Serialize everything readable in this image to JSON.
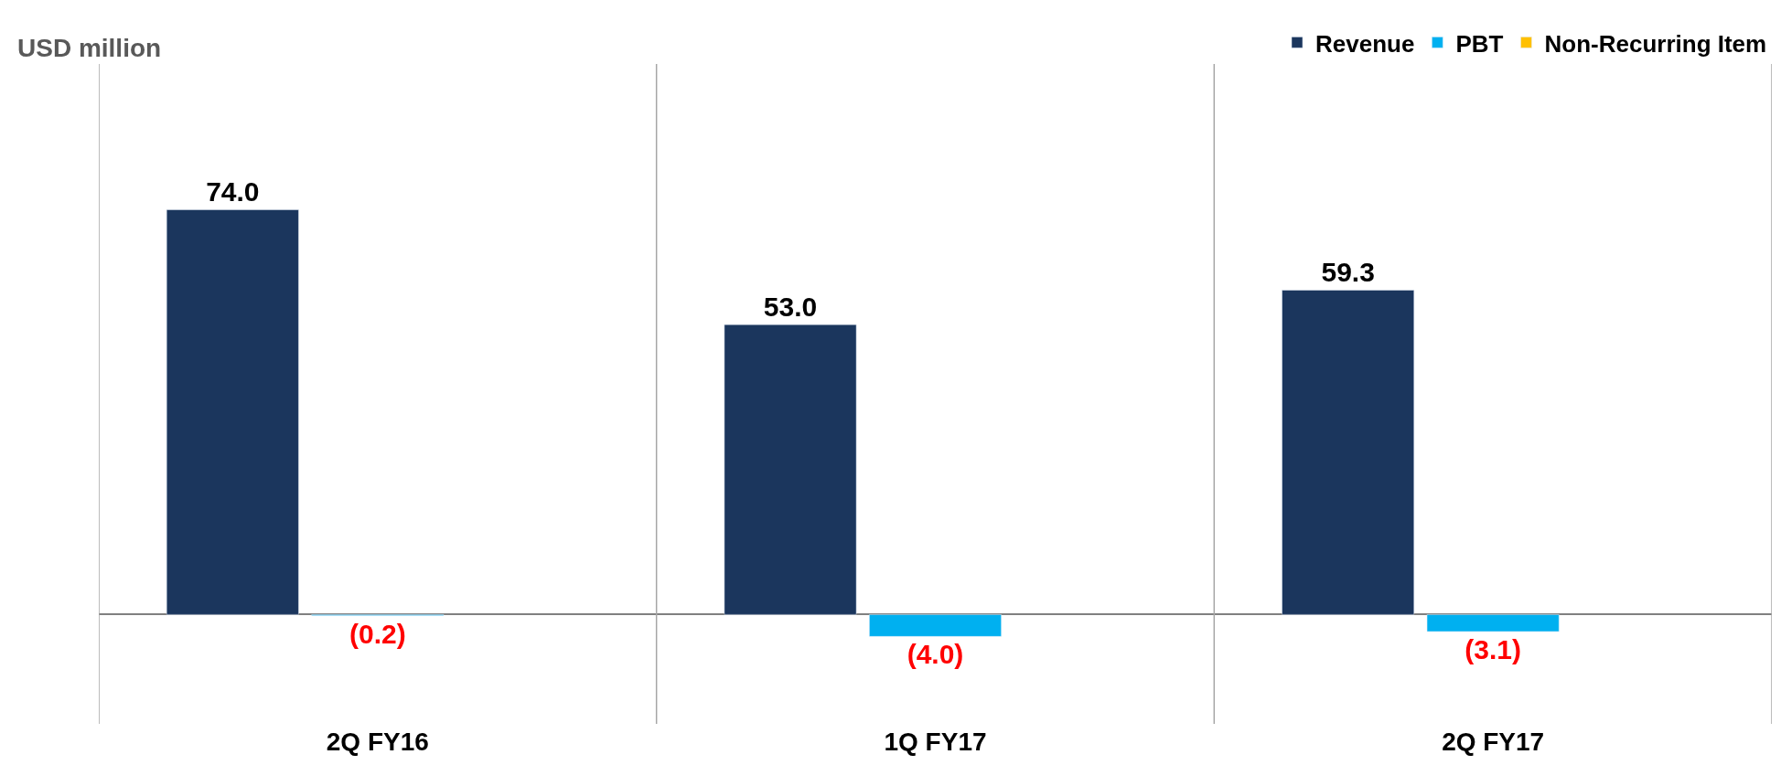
{
  "chart_data": {
    "type": "bar",
    "annotations": [
      "USD million"
    ],
    "categories": [
      "2Q FY16",
      "1Q FY17",
      "2Q FY17"
    ],
    "series": [
      {
        "name": "Revenue",
        "color": "#1b365d",
        "values": [
          74.0,
          53.0,
          59.3
        ],
        "value_labels": [
          "74.0",
          "53.0",
          "59.3"
        ]
      },
      {
        "name": "PBT",
        "color": "#00b0f0",
        "values": [
          -0.2,
          -4.0,
          -3.1
        ],
        "value_labels": [
          "(0.2)",
          "(4.0)",
          "(3.1)"
        ]
      },
      {
        "name": "Non-Recurring Item",
        "color": "#ffc000",
        "values": [
          null,
          null,
          null
        ]
      }
    ],
    "legend": "top right",
    "grid": "x",
    "tick_labels": "x"
  }
}
